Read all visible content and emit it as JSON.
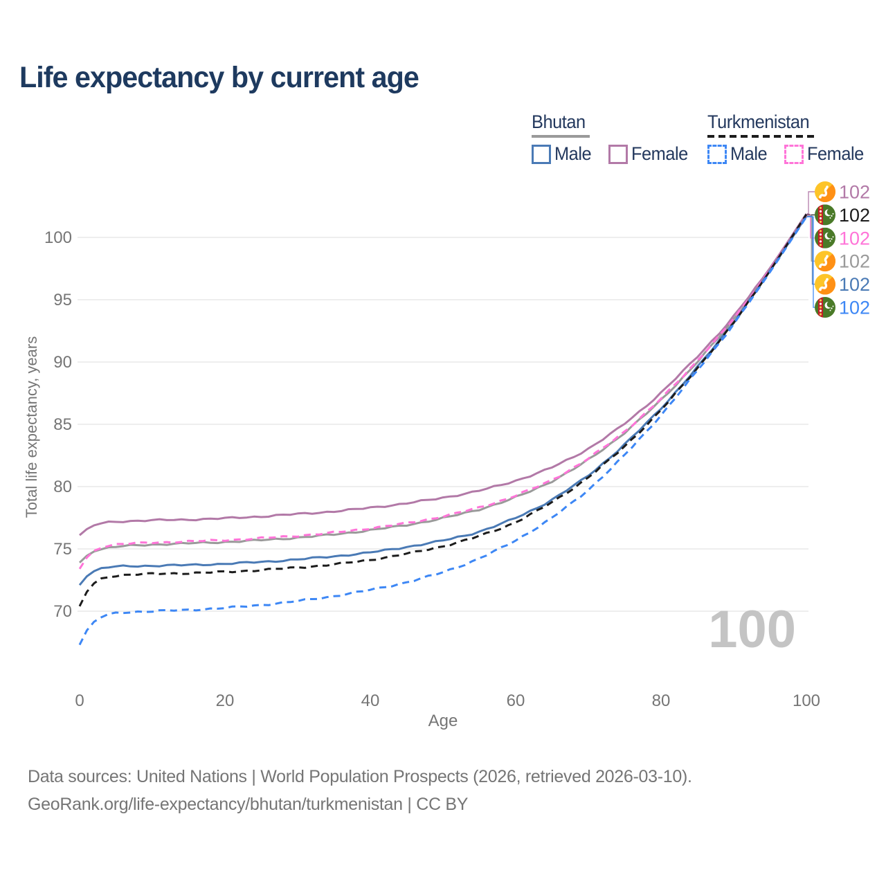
{
  "title": "Life expectancy by current age",
  "legend": {
    "groups": [
      {
        "id": "bhutan",
        "label": "Bhutan",
        "underline": "solid",
        "underline_color": "#9a9a9a",
        "items": [
          {
            "label": "Male",
            "color": "#4a7ab5",
            "dash": false
          },
          {
            "label": "Female",
            "color": "#b279a7",
            "dash": false
          }
        ]
      },
      {
        "id": "turkmenistan",
        "label": "Turkmenistan",
        "underline": "dashed",
        "underline_color": "#1c1c1c",
        "items": [
          {
            "label": "Male",
            "color": "#3d87f5",
            "dash": true
          },
          {
            "label": "Female",
            "color": "#ff74d8",
            "dash": true
          }
        ]
      }
    ]
  },
  "chart_data": {
    "type": "line",
    "title": "Life expectancy by current age",
    "xlabel": "Age",
    "ylabel": "Total life expectancy, years",
    "xlim": [
      0,
      100
    ],
    "ylim": [
      66.5,
      103
    ],
    "xticks": [
      0,
      20,
      40,
      60,
      80,
      100
    ],
    "yticks": [
      70,
      75,
      80,
      85,
      90,
      95,
      100
    ],
    "grid": "horizontal",
    "age_counter": "100",
    "x": [
      0,
      1,
      2,
      5,
      10,
      15,
      20,
      25,
      30,
      35,
      40,
      45,
      50,
      55,
      60,
      65,
      70,
      75,
      80,
      85,
      90,
      95,
      100
    ],
    "series": [
      {
        "id": "bhutan_female",
        "name": "Bhutan Female",
        "country": "bhutan",
        "sex": "female",
        "color": "#b279a7",
        "dash": false,
        "end_label": "102",
        "values": [
          76.1,
          76.9,
          77.1,
          77.2,
          77.3,
          77.35,
          77.45,
          77.6,
          77.8,
          78.0,
          78.3,
          78.65,
          79.1,
          79.65,
          80.45,
          81.5,
          83.0,
          85.0,
          87.5,
          90.4,
          93.6,
          97.5,
          101.9
        ]
      },
      {
        "id": "turkmenistan_all",
        "name": "Turkmenistan",
        "country": "turkmenistan",
        "sex": "all",
        "color": "#1c1c1c",
        "dash": true,
        "end_label": "102",
        "values": [
          70.4,
          72.4,
          72.7,
          72.9,
          73.0,
          73.05,
          73.15,
          73.3,
          73.5,
          73.75,
          74.1,
          74.6,
          75.2,
          76.0,
          77.1,
          78.7,
          80.7,
          83.2,
          86.1,
          89.5,
          93.1,
          97.3,
          101.85
        ]
      },
      {
        "id": "turkmenistan_female",
        "name": "Turkmenistan Female",
        "country": "turkmenistan",
        "sex": "female",
        "color": "#ff74d8",
        "dash": true,
        "end_label": "102",
        "values": [
          73.4,
          75.0,
          75.2,
          75.4,
          75.5,
          75.6,
          75.7,
          75.85,
          76.05,
          76.3,
          76.65,
          77.05,
          77.6,
          78.3,
          79.25,
          80.5,
          82.2,
          84.4,
          87.0,
          90.1,
          93.4,
          97.4,
          101.8
        ]
      },
      {
        "id": "bhutan_all",
        "name": "Bhutan",
        "country": "bhutan",
        "sex": "all",
        "color": "#9a9a9a",
        "dash": false,
        "end_label": "102",
        "values": [
          73.9,
          74.8,
          75.0,
          75.2,
          75.35,
          75.45,
          75.55,
          75.7,
          75.9,
          76.15,
          76.5,
          76.9,
          77.45,
          78.15,
          79.1,
          80.4,
          82.1,
          84.3,
          86.9,
          90.0,
          93.35,
          97.35,
          101.75
        ]
      },
      {
        "id": "bhutan_male",
        "name": "Bhutan Male",
        "country": "bhutan",
        "sex": "male",
        "color": "#4a7ab5",
        "dash": false,
        "end_label": "102",
        "values": [
          72.1,
          73.3,
          73.5,
          73.6,
          73.65,
          73.7,
          73.8,
          73.95,
          74.15,
          74.4,
          74.7,
          75.15,
          75.65,
          76.35,
          77.45,
          78.9,
          80.85,
          83.35,
          86.25,
          89.55,
          93.15,
          97.3,
          101.7
        ]
      },
      {
        "id": "turkmenistan_male",
        "name": "Turkmenistan Male",
        "country": "turkmenistan",
        "sex": "male",
        "color": "#3d87f5",
        "dash": true,
        "end_label": "102",
        "values": [
          67.3,
          69.3,
          69.6,
          69.9,
          70.0,
          70.1,
          70.25,
          70.5,
          70.8,
          71.2,
          71.7,
          72.3,
          73.1,
          74.2,
          75.65,
          77.45,
          79.7,
          82.5,
          85.7,
          89.3,
          93.0,
          97.2,
          101.65
        ]
      }
    ],
    "draw_order": [
      "bhutan_all",
      "bhutan_female",
      "bhutan_male",
      "turkmenistan_female",
      "turkmenistan_all",
      "turkmenistan_male"
    ],
    "legend_position": "top-right"
  },
  "footer": {
    "line1": "Data sources: United Nations | World Population Prospects (2026, retrieved 2026-03-10).",
    "line2": "GeoRank.org/life-expectancy/bhutan/turkmenistan | CC BY"
  }
}
